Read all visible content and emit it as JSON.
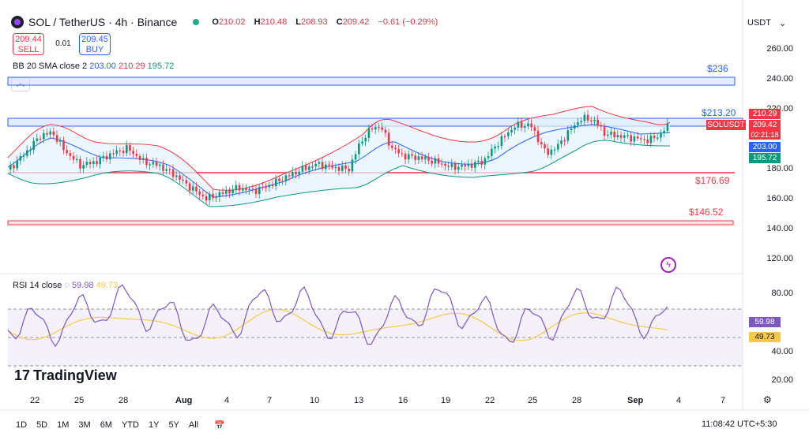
{
  "header": {
    "symbol": "SOL / TetherUS · 4h · Binance",
    "open_label": "O",
    "open": "210.02",
    "high_label": "H",
    "high": "210.48",
    "low_label": "L",
    "low": "208.93",
    "close_label": "C",
    "close": "209.42",
    "change": "−0.61 (−0.29%)"
  },
  "trade": {
    "sell_price": "209.44",
    "sell_label": "SELL",
    "buy_price": "209.45",
    "buy_label": "BUY",
    "spread": "0.01"
  },
  "indicator_bb": {
    "label": "BB 20 SMA close 2",
    "basis": "203.00",
    "upper": "210.29",
    "lower": "195.72"
  },
  "currency": "USDT",
  "price_axis": [
    "260.00",
    "240.00",
    "220.00",
    "180.00",
    "160.00",
    "140.00",
    "120.00"
  ],
  "price_tags": {
    "upper": "210.29",
    "symbol": "SOLUSDT",
    "price": "209.42",
    "countdown": "02:21:18",
    "basis": "203.00",
    "lower": "195.72"
  },
  "levels": {
    "l236": "$236",
    "l213": "$213.20",
    "l176": "$176.69",
    "l146": "$146.52"
  },
  "rsi": {
    "label": "RSI 14 close",
    "value": "59.98",
    "ma": "49.73",
    "axis": [
      "80.00",
      "40.00",
      "20.00"
    ]
  },
  "brand": "TradingView",
  "time_axis": [
    "22",
    "25",
    "28",
    "Aug",
    "4",
    "7",
    "10",
    "13",
    "16",
    "19",
    "22",
    "25",
    "28",
    "Sep",
    "4",
    "7"
  ],
  "timeframes": [
    "1D",
    "5D",
    "1M",
    "3M",
    "6M",
    "YTD",
    "1Y",
    "5Y",
    "All"
  ],
  "clock": "11:08:42 UTC+5:30",
  "colors": {
    "up": "#089981",
    "down": "#f23645",
    "basis": "#2962ff",
    "rsi": "#7e57c2",
    "rsi_ma": "#f7c948"
  }
}
